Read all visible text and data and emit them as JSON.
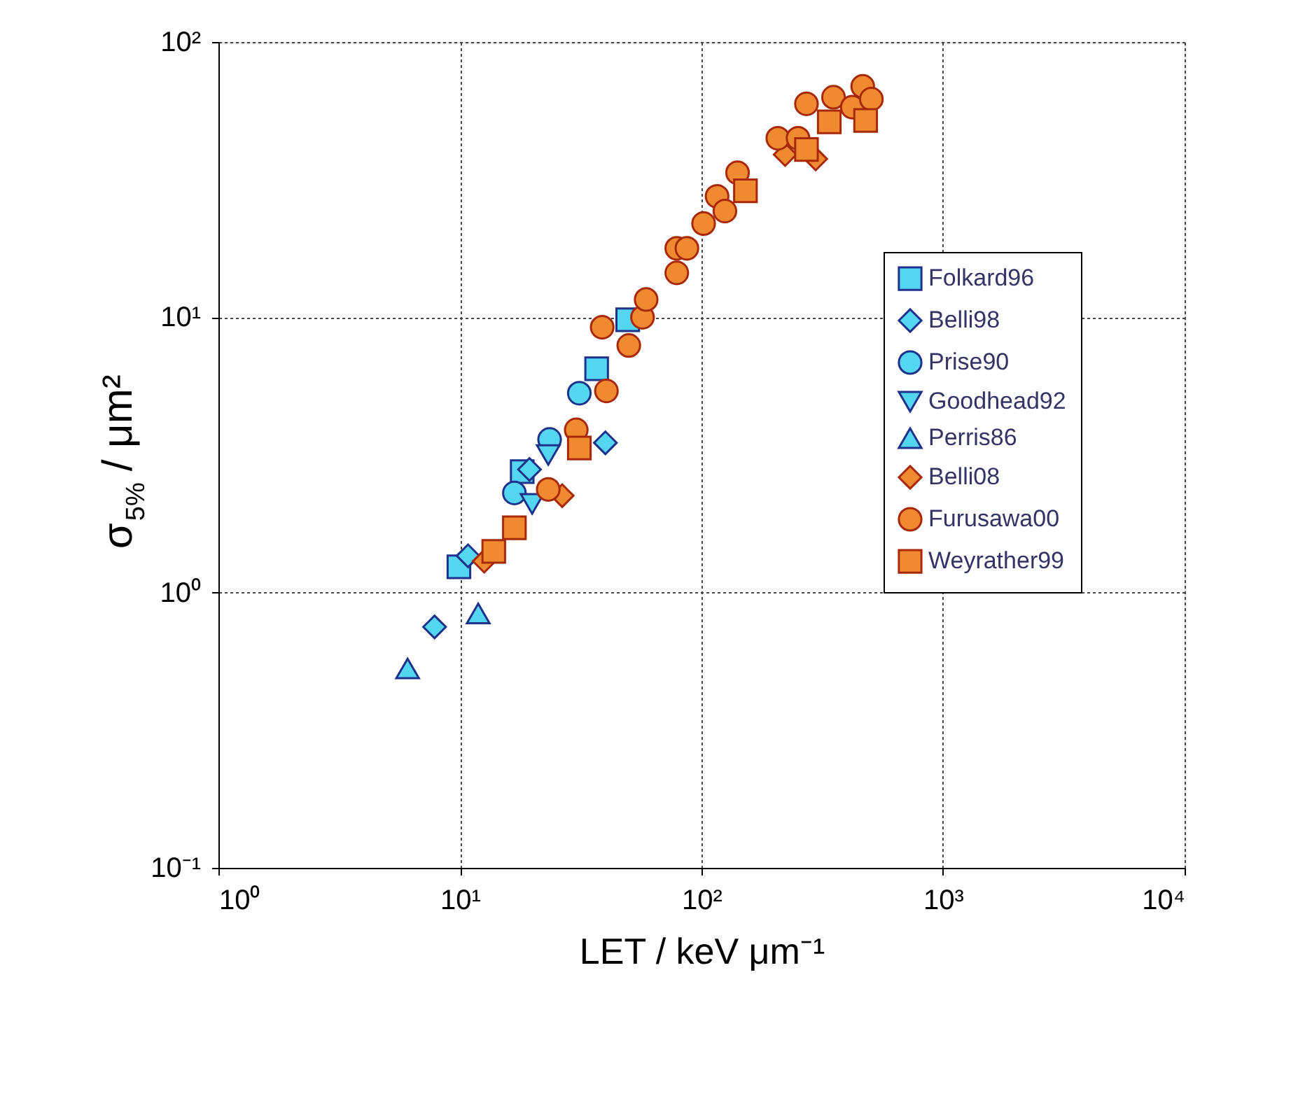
{
  "chart_data": {
    "type": "scatter",
    "xlabel": "LET / keV μm⁻¹",
    "ylabel": "σ$_{5%}$ / μm²",
    "log": "xy",
    "grid": true,
    "legend": "right",
    "xlim": [
      1,
      10000
    ],
    "ylim": [
      0.1,
      100
    ],
    "xticks": [
      {
        "value": 1,
        "label": "10⁰"
      },
      {
        "value": 10,
        "label": "10¹"
      },
      {
        "value": 100,
        "label": "10²"
      },
      {
        "value": 1000,
        "label": "10³"
      },
      {
        "value": 10000,
        "label": "10⁴"
      }
    ],
    "yticks": [
      {
        "value": 0.1,
        "label": "10⁻¹"
      },
      {
        "value": 1,
        "label": "10⁰"
      },
      {
        "value": 10,
        "label": "10¹"
      },
      {
        "value": 100,
        "label": "10²"
      }
    ],
    "series": [
      {
        "name": "Folkard96",
        "color": "#55d6f0",
        "marker": "square",
        "x": [
          9.9,
          18.1,
          36.8,
          49.5
        ],
        "values": [
          1.24,
          2.75,
          6.5,
          9.8
        ]
      },
      {
        "name": "Belli98",
        "color": "#55d6f0",
        "marker": "diamond",
        "x": [
          7.85,
          10.8,
          19.4,
          40
        ],
        "values": [
          0.75,
          1.36,
          2.8,
          3.5
        ]
      },
      {
        "name": "Prise90",
        "color": "#55d6f0",
        "marker": "circle",
        "x": [
          16.8,
          23.5,
          31.2
        ],
        "values": [
          2.3,
          3.6,
          5.3
        ]
      },
      {
        "name": "Goodhead92",
        "color": "#55d6f0",
        "marker": "triangle-down",
        "x": [
          19.9,
          23.2
        ],
        "values": [
          2.1,
          3.16
        ]
      },
      {
        "name": "Perris86",
        "color": "#55d6f0",
        "marker": "triangle",
        "x": [
          6.07,
          11.9
        ],
        "values": [
          0.53,
          0.84
        ]
      },
      {
        "name": "Belli08",
        "color": "#f08a30",
        "marker": "diamond",
        "x": [
          12.6,
          26.5,
          222,
          297
        ],
        "values": [
          1.3,
          2.25,
          39,
          37.6
        ]
      },
      {
        "name": "Furusawa00",
        "color": "#f08a30",
        "marker": "circle",
        "x": [
          23.2,
          30.3,
          38.8,
          40.4,
          50,
          57,
          59,
          79,
          79,
          87,
          102,
          116,
          125,
          141,
          207,
          251,
          272,
          352,
          421,
          465,
          505
        ],
        "values": [
          2.37,
          3.9,
          9.2,
          5.4,
          7.9,
          10,
          11.6,
          14.5,
          17.8,
          17.8,
          21.9,
          27.5,
          24.3,
          33.5,
          44.7,
          44.7,
          59.6,
          63,
          58,
          69,
          62
        ]
      },
      {
        "name": "Weyrather99",
        "color": "#f08a30",
        "marker": "square",
        "x": [
          13.8,
          16.8,
          31.2,
          152,
          272,
          338,
          478
        ],
        "values": [
          1.41,
          1.72,
          3.35,
          28.8,
          40.7,
          51.3,
          51.9
        ]
      }
    ]
  }
}
